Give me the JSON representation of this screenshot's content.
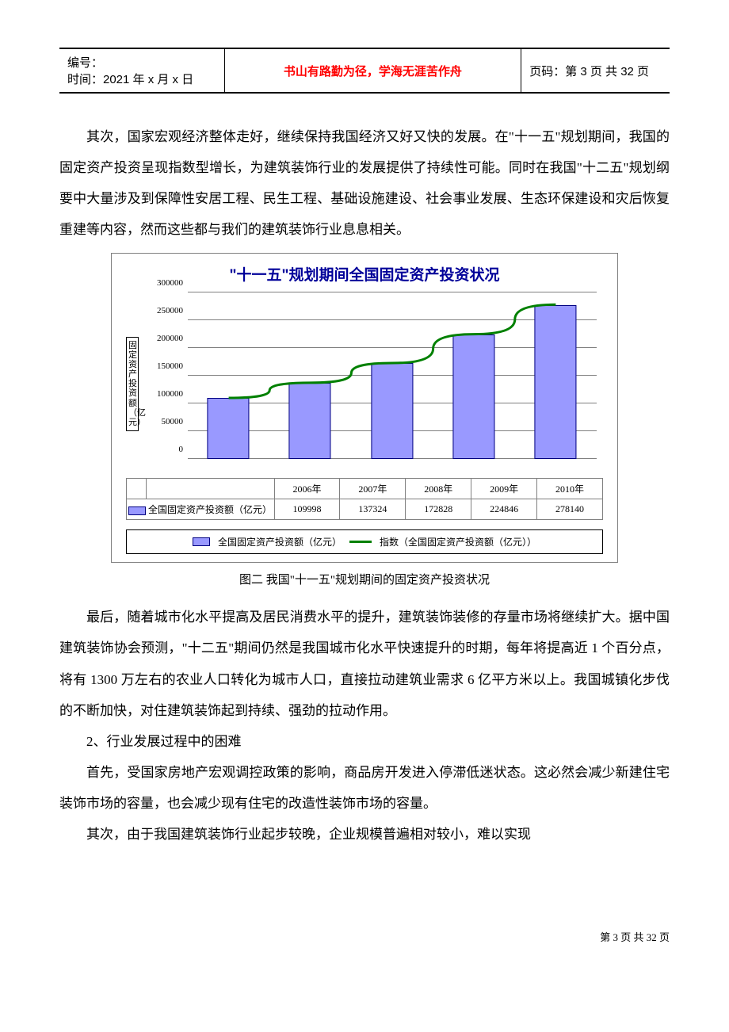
{
  "header": {
    "left_line1": "编号：",
    "left_line2": "时间：2021 年 x 月 x 日",
    "center": "书山有路勤为径，学海无涯苦作舟",
    "center_color": "#ff0000",
    "right": "页码：第 3 页  共 32 页"
  },
  "paragraphs": {
    "p1": "其次，国家宏观经济整体走好，继续保持我国经济又好又快的发展。在\"十一五\"规划期间，我国的固定资产投资呈现指数型增长，为建筑装饰行业的发展提供了持续性可能。同时在我国\"十二五\"规划纲要中大量涉及到保障性安居工程、民生工程、基础设施建设、社会事业发展、生态环保建设和灾后恢复重建等内容，然而这些都与我们的建筑装饰行业息息相关。",
    "p2": "最后，随着城市化水平提高及居民消费水平的提升，建筑装饰装修的存量市场将继续扩大。据中国建筑装饰协会预测，\"十二五\"期间仍然是我国城市化水平快速提升的时期，每年将提高近 1 个百分点，将有 1300 万左右的农业人口转化为城市人口，直接拉动建筑业需求 6 亿平方米以上。我国城镇化步伐的不断加快，对住建筑装饰起到持续、强劲的拉动作用。",
    "p3": "2、行业发展过程中的困难",
    "p4": "首先，受国家房地产宏观调控政策的影响，商品房开发进入停滞低迷状态。这必然会减少新建住宅装饰市场的容量，也会减少现有住宅的改造性装饰市场的容量。",
    "p5": "其次，由于我国建筑装饰行业起步较晚，企业规模普遍相对较小，难以实现"
  },
  "chart": {
    "title": "\"十一五\"规划期间全国固定资产投资状况",
    "title_color": "#000099",
    "y_axis_label": "固定资产投资额（亿元）",
    "categories": [
      "2006年",
      "2007年",
      "2008年",
      "2009年",
      "2010年"
    ],
    "values": [
      109998,
      137324,
      172828,
      224846,
      278140
    ],
    "row_label": "全国固定资产投资额（亿元）",
    "ymax": 300000,
    "ytick_step": 50000,
    "yticks": [
      "0",
      "50000",
      "100000",
      "150000",
      "200000",
      "250000",
      "300000"
    ],
    "bar_fill": "#9999ff",
    "bar_border": "#000080",
    "trend_color": "#008000",
    "trend_width": 3,
    "grid_color": "#808080",
    "background": "#ffffff",
    "legend": {
      "series1": "全国固定资产投资额（亿元）",
      "series2": "指数（全国固定资产投资额（亿元））"
    }
  },
  "figure_caption": "图二  我国\"十一五\"规划期间的固定资产投资状况",
  "footer": "第 3 页 共 32 页"
}
